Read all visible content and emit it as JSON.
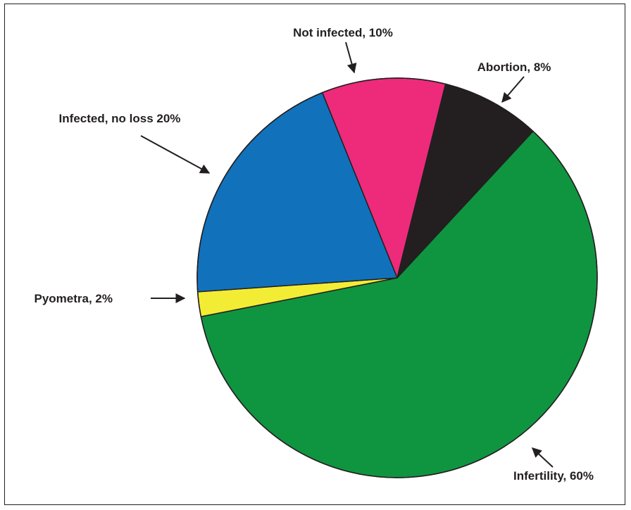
{
  "chart_data": {
    "type": "pie",
    "title": "",
    "start_angle_deg": -112,
    "direction": "clockwise",
    "slices": [
      {
        "name": "Not infected",
        "value": 10,
        "label": "Not infected, 10%",
        "color": "#ee2a7b"
      },
      {
        "name": "Abortion",
        "value": 8,
        "label": "Abortion, 8%",
        "color": "#231f20"
      },
      {
        "name": "Infertility",
        "value": 60,
        "label": "Infertility, 60%",
        "color": "#0f9540"
      },
      {
        "name": "Pyometra",
        "value": 2,
        "label": "Pyometra, 2%",
        "color": "#f3ec34"
      },
      {
        "name": "Infected, no loss",
        "value": 20,
        "label": "Infected, no loss 20%",
        "color": "#1172bb"
      }
    ],
    "outline_color": "#231f20"
  }
}
